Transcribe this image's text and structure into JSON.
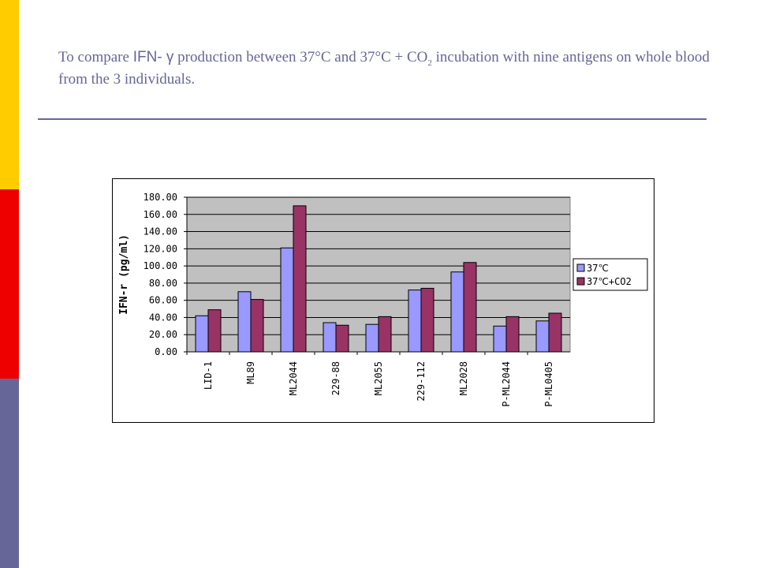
{
  "slide": {
    "title_part1": "To compare ",
    "title_ifn": "IFN- γ",
    "title_part2": " production between  37°C and 37°C + CO",
    "title_sub": "2",
    "title_part3": " incubation with nine antigens on whole blood from the 3 individuals."
  },
  "colors": {
    "accent_yellow": "#ffcc00",
    "accent_red": "#ee0000",
    "accent_purple": "#666699",
    "series1": "#9999ff",
    "series2": "#993366",
    "plot_bg": "#c0c0c0"
  },
  "chart_data": {
    "type": "bar",
    "ylabel": "IFN-r (pg/ml)",
    "xlabel": "",
    "ylim": [
      0,
      180
    ],
    "y_ticks": [
      "0.00",
      "20.00",
      "40.00",
      "60.00",
      "80.00",
      "100.00",
      "120.00",
      "140.00",
      "160.00",
      "180.00"
    ],
    "grid": true,
    "legend_position": "right",
    "categories": [
      "LID-1",
      "ML89",
      "ML2044",
      "229-88",
      "ML2055",
      "229-112",
      "ML2028",
      "P-ML2044",
      "P-ML0405"
    ],
    "series": [
      {
        "name": "37℃",
        "values": [
          42,
          70,
          121,
          34,
          32,
          72,
          93,
          30,
          36
        ]
      },
      {
        "name": "37℃+CO2",
        "values": [
          49,
          61,
          170,
          31,
          41,
          74,
          104,
          41,
          45
        ]
      }
    ]
  }
}
